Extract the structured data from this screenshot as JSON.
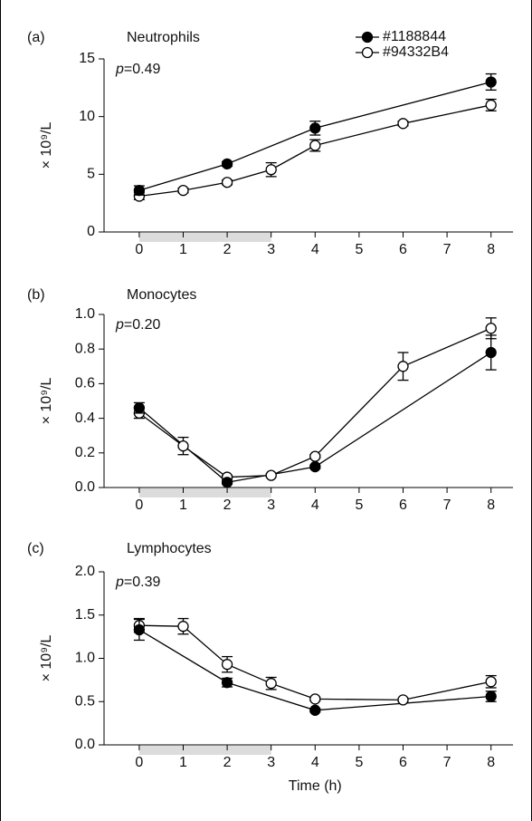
{
  "chart_data": [
    {
      "type": "line",
      "panel": "(a)",
      "title": "Neutrophils",
      "annotation": [
        "p",
        "=0.49"
      ],
      "y_label": "× 10⁹/L",
      "xlim": [
        -0.8,
        8.5
      ],
      "xticks": [
        0,
        1,
        2,
        3,
        4,
        5,
        6,
        7,
        8
      ],
      "shade_x": [
        0,
        3
      ],
      "ylim": [
        0,
        15
      ],
      "yticks": [
        0,
        5,
        10,
        15
      ],
      "legend": "upper right",
      "series": [
        {
          "name": "#1188844",
          "color": "#000000",
          "marker_fill": "#000000",
          "x": [
            0,
            2,
            4,
            8
          ],
          "values": [
            3.6,
            5.9,
            9.0,
            13.0
          ],
          "errors": [
            0.4,
            0.2,
            0.6,
            0.7
          ]
        },
        {
          "name": "#94332B4",
          "color": "#000000",
          "marker_fill": "#ffffff",
          "x": [
            0,
            1,
            2,
            3,
            4,
            6,
            8
          ],
          "values": [
            3.1,
            3.6,
            4.3,
            5.4,
            7.5,
            9.4,
            11.0
          ],
          "errors": [
            0.3,
            0.2,
            0.2,
            0.6,
            0.5,
            0.2,
            0.5
          ]
        }
      ]
    },
    {
      "type": "line",
      "panel": "(b)",
      "title": "Monocytes",
      "annotation": [
        "p",
        "=0.20"
      ],
      "y_label": "× 10⁹/L",
      "xlim": [
        -0.8,
        8.5
      ],
      "xticks": [
        0,
        1,
        2,
        3,
        4,
        5,
        6,
        7,
        8
      ],
      "shade_x": [
        0,
        3
      ],
      "ylim": [
        0,
        1.0
      ],
      "yticks": [
        {
          "value": 0,
          "label": "0.0"
        },
        0.2,
        0.4,
        0.6,
        0.8,
        {
          "value": 1,
          "label": "1.0"
        }
      ],
      "series": [
        {
          "color": "#000000",
          "marker_fill": "#000000",
          "x": [
            0,
            2,
            4,
            8
          ],
          "values": [
            0.46,
            0.03,
            0.12,
            0.78
          ],
          "errors": [
            0.03,
            0.01,
            0.01,
            0.1
          ]
        },
        {
          "color": "#000000",
          "marker_fill": "#ffffff",
          "x": [
            0,
            1,
            2,
            3,
            4,
            6,
            8
          ],
          "values": [
            0.43,
            0.24,
            0.06,
            0.07,
            0.18,
            0.7,
            0.92
          ],
          "errors": [
            0.03,
            0.05,
            0.01,
            0.01,
            0.01,
            0.08,
            0.06
          ]
        }
      ]
    },
    {
      "type": "line",
      "panel": "(c)",
      "title": "Lymphocytes",
      "annotation": [
        "p",
        "=0.39"
      ],
      "y_label": "× 10⁹/L",
      "x_label": "Time (h)",
      "xlim": [
        -0.8,
        8.5
      ],
      "xticks": [
        0,
        1,
        2,
        3,
        4,
        5,
        6,
        7,
        8
      ],
      "shade_x": [
        0,
        3
      ],
      "ylim": [
        0,
        2.0
      ],
      "yticks": [
        {
          "value": 0,
          "label": "0.0"
        },
        0.5,
        {
          "value": 1,
          "label": "1.0"
        },
        1.5,
        {
          "value": 2,
          "label": "2.0"
        }
      ],
      "series": [
        {
          "color": "#000000",
          "marker_fill": "#000000",
          "x": [
            0,
            2,
            4,
            8
          ],
          "values": [
            1.33,
            0.72,
            0.4,
            0.56
          ],
          "errors": [
            0.12,
            0.05,
            0.02,
            0.06
          ]
        },
        {
          "color": "#000000",
          "marker_fill": "#ffffff",
          "x": [
            0,
            1,
            2,
            3,
            4,
            6,
            8
          ],
          "values": [
            1.38,
            1.37,
            0.93,
            0.71,
            0.53,
            0.52,
            0.73
          ],
          "errors": [
            0.08,
            0.09,
            0.09,
            0.07,
            0.02,
            0.02,
            0.07
          ]
        }
      ]
    }
  ]
}
